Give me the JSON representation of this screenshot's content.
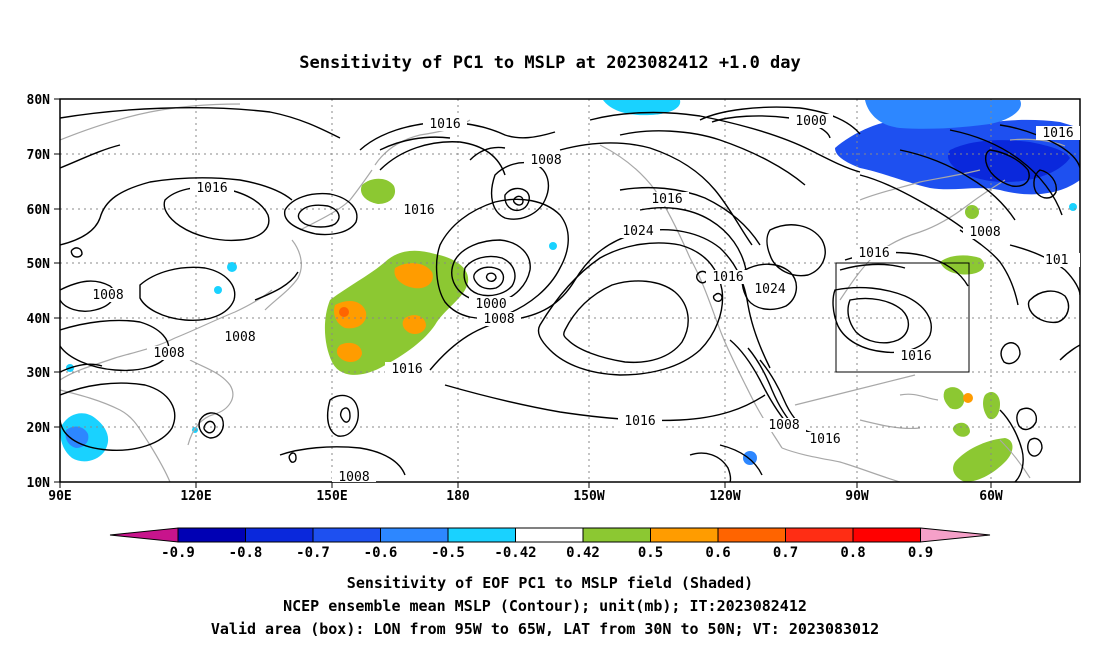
{
  "title": "Sensitivity of PC1 to MSLP at 2023082412 +1.0 day",
  "axes": {
    "lat_ticks": [
      "80N",
      "70N",
      "60N",
      "50N",
      "40N",
      "30N",
      "20N",
      "10N"
    ],
    "lon_ticks": [
      "90E",
      "120E",
      "150E",
      "180",
      "150W",
      "120W",
      "90W",
      "60W"
    ]
  },
  "contour_labels": [
    "1016",
    "1016",
    "1016",
    "1016",
    "1016",
    "1016",
    "1016",
    "1016",
    "1016",
    "1016",
    "1016",
    "1000",
    "1000",
    "1008",
    "1008",
    "1008",
    "1008",
    "1008",
    "1008",
    "1008",
    "1024",
    "1024",
    "1008",
    "1016",
    "1016",
    "101"
  ],
  "colorbar": {
    "labels": [
      "-0.9",
      "-0.8",
      "-0.7",
      "-0.6",
      "-0.5",
      "-0.42",
      "0.42",
      "0.5",
      "0.6",
      "0.7",
      "0.8",
      "0.9"
    ],
    "colors": [
      "#8b00a6",
      "#0000b4",
      "#0a28dc",
      "#1e50f0",
      "#2d87ff",
      "#19d2ff",
      "#ffffff",
      "#8cc832",
      "#ff9c00",
      "#ff6400",
      "#ff2d14",
      "#ff0000",
      "#f08cc8"
    ]
  },
  "captions": {
    "line1": "Sensitivity of EOF PC1 to MSLP field (Shaded)",
    "line2": "NCEP ensemble mean MSLP (Contour); unit(mb); IT:2023082412",
    "line3": "Valid area (box): LON from 95W to 65W, LAT from 30N to 50N; VT: 2023083012"
  }
}
